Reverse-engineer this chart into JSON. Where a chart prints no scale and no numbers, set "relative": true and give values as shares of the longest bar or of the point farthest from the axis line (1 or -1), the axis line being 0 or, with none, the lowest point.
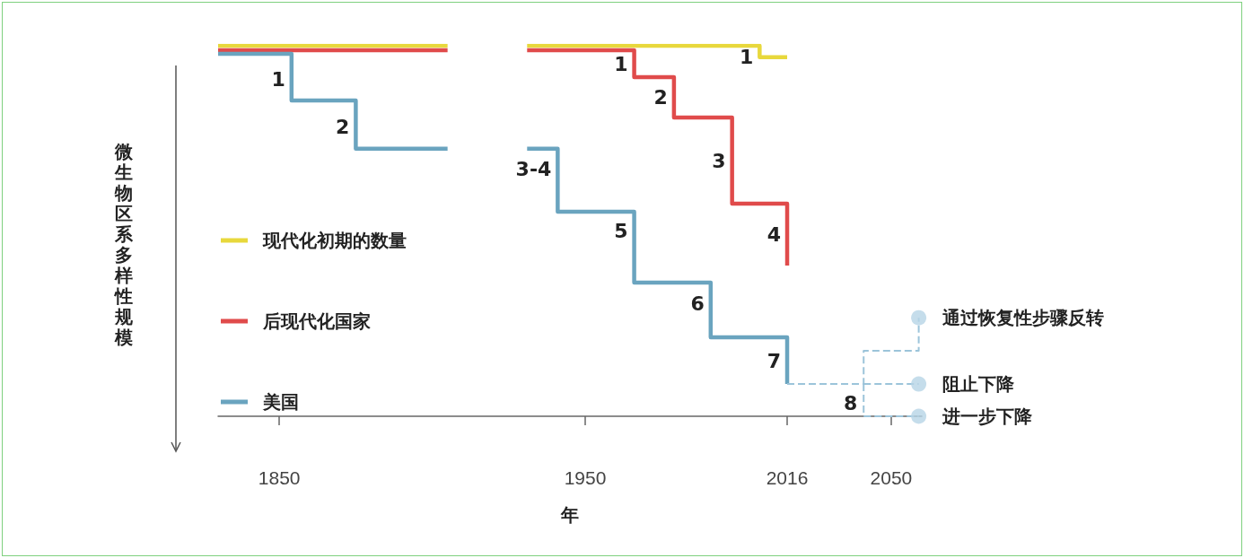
{
  "chart_data": {
    "type": "step",
    "relative": true,
    "xlabel": "年",
    "ylabel": "微生物区系多样性规模",
    "xlim": [
      1830,
      2060
    ],
    "xticks": [
      1850,
      1950,
      2016,
      2050
    ],
    "tick_labels": "x",
    "legend": "left",
    "series": [
      {
        "name": "现代化初期的数量",
        "color": "#e8d83c",
        "x": [
          1830,
          1880,
          1905,
          1931,
          2007,
          2016
        ],
        "values": [
          1,
          1,
          null,
          1,
          0.969,
          0.969
        ]
      },
      {
        "name": "后现代化国家",
        "color": "#e04b4b",
        "x": [
          1830,
          1880,
          1905,
          1931,
          1966,
          1979,
          1998,
          2016
        ],
        "values": [
          0.988,
          0.988,
          null,
          0.988,
          0.915,
          0.806,
          0.574,
          0.407
        ]
      },
      {
        "name": "美国",
        "color": "#6aa4bf",
        "x": [
          1830,
          1854,
          1875,
          1880,
          1905,
          1931,
          1941,
          1966,
          1991,
          2016
        ],
        "values": [
          0.978,
          0.852,
          0.722,
          0.722,
          null,
          0.722,
          0.552,
          0.361,
          0.213,
          0.087
        ]
      },
      {
        "type": "line",
        "line_style": "dashed",
        "color": "#9cc4da",
        "x": [
          2016,
          2041,
          2041,
          2059,
          2059
        ],
        "values": [
          0.087,
          0.087,
          0.177,
          0.177,
          0.266
        ]
      },
      {
        "type": "line",
        "line_style": "dashed",
        "color": "#9cc4da",
        "x": [
          2041,
          2059
        ],
        "values": [
          0.087,
          0.087
        ]
      },
      {
        "type": "line",
        "line_style": "dashed",
        "color": "#9cc4da",
        "x": [
          2041,
          2041,
          2059
        ],
        "values": [
          0.087,
          0,
          0
        ]
      },
      {
        "type": "scatter",
        "marker": "circle",
        "color": "#b6d4e6",
        "x": [
          2059,
          2059,
          2059
        ],
        "values": [
          0.266,
          0.087,
          0
        ]
      }
    ],
    "annotations": [
      {
        "text": "1",
        "x": 1854,
        "y": 0.908
      },
      {
        "text": "2",
        "x": 1875,
        "y": 0.78
      },
      {
        "text": "3-4",
        "x": 1941,
        "y": 0.666
      },
      {
        "text": "5",
        "x": 1966,
        "y": 0.499
      },
      {
        "text": "6",
        "x": 1991,
        "y": 0.305
      },
      {
        "text": "7",
        "x": 2016,
        "y": 0.15
      },
      {
        "text": "8",
        "x": 2041,
        "y": 0.034
      },
      {
        "text": "1",
        "x": 1966,
        "y": 0.95
      },
      {
        "text": "2",
        "x": 1979,
        "y": 0.86
      },
      {
        "text": "3",
        "x": 1998,
        "y": 0.69
      },
      {
        "text": "4",
        "x": 2016,
        "y": 0.49
      },
      {
        "text": "1",
        "x": 2007,
        "y": 0.969
      },
      {
        "text": "通过恢复性步骤反转",
        "x": 2059,
        "y": 0.266
      },
      {
        "text": "阻止下降",
        "x": 2059,
        "y": 0.087
      },
      {
        "text": "进一步下降",
        "x": 2059,
        "y": 0
      }
    ]
  }
}
